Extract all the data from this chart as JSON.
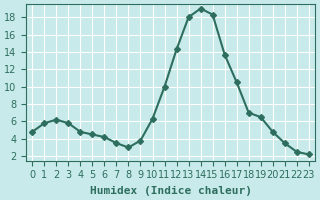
{
  "x": [
    0,
    1,
    2,
    3,
    4,
    5,
    6,
    7,
    8,
    9,
    10,
    11,
    12,
    13,
    14,
    15,
    16,
    17,
    18,
    19,
    20,
    21,
    22,
    23
  ],
  "y": [
    4.8,
    5.8,
    6.2,
    5.8,
    4.8,
    4.5,
    4.2,
    3.5,
    3.0,
    3.8,
    6.3,
    10.0,
    14.3,
    18.0,
    19.0,
    18.3,
    13.7,
    10.5,
    7.0,
    6.5,
    4.8,
    3.5,
    2.5,
    2.2
  ],
  "line_color": "#2d6e5e",
  "marker": "D",
  "marker_size": 3,
  "bg_color": "#c8eaea",
  "grid_color": "#ffffff",
  "xlabel": "Humidex (Indice chaleur)",
  "xlabel_fontsize": 8,
  "ylabel_ticks": [
    2,
    4,
    6,
    8,
    10,
    12,
    14,
    16,
    18
  ],
  "xlim": [
    -0.5,
    23.5
  ],
  "ylim": [
    1.5,
    19.5
  ],
  "tick_fontsize": 7,
  "line_width": 1.5
}
